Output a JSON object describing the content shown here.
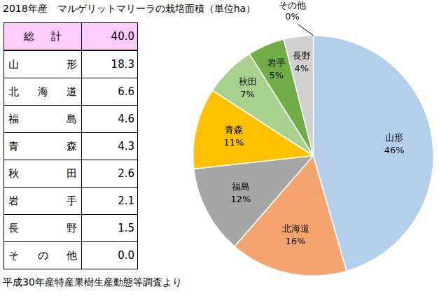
{
  "title": "2018年産　マルゲリットマリーラの栽培面積（単位ha）",
  "table": {
    "header": [
      "総計",
      "40.0"
    ],
    "rows": [
      [
        "山形",
        "18.3"
      ],
      [
        "北海道",
        "6.6"
      ],
      [
        "福島",
        "4.6"
      ],
      [
        "青森",
        "4.3"
      ],
      [
        "秋田",
        "2.6"
      ],
      [
        "岩手",
        "2.1"
      ],
      [
        "長野",
        "1.5"
      ],
      [
        "その他",
        "0.0"
      ]
    ]
  },
  "chart_data": {
    "type": "pie",
    "categories": [
      "山形",
      "北海道",
      "福島",
      "青森",
      "秋田",
      "岩手",
      "長野",
      "その他"
    ],
    "values": [
      46,
      16,
      12,
      11,
      7,
      5,
      4,
      0
    ],
    "value_labels": [
      "46%",
      "16%",
      "12%",
      "11%",
      "7%",
      "5%",
      "4%",
      "0%"
    ],
    "colors": [
      "#b4cfec",
      "#f4a46e",
      "#a6a6a6",
      "#ffc000",
      "#a9d18e",
      "#70ad47",
      "#d0d0d0",
      "#8faadc"
    ],
    "data_labels": true
  },
  "source": "平成30年産特産果樹生産動態等調査より"
}
